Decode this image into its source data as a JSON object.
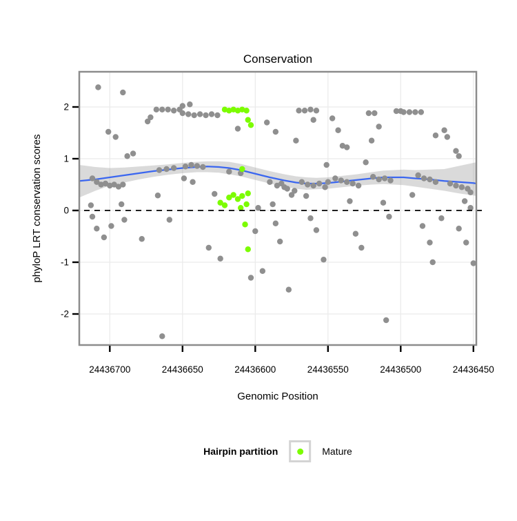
{
  "legend": {
    "title": "Hairpin partition",
    "items": [
      {
        "label": "Mature",
        "color_key": "mature"
      }
    ]
  },
  "chart_data": {
    "type": "scatter",
    "title": "Conservation",
    "xlabel": "Genomic Position",
    "ylabel": "phyloP LRT conservation scores",
    "xlim": [
      24436721,
      24436448
    ],
    "x_axis_reversed": true,
    "ylim": [
      -2.6,
      2.68
    ],
    "xticks": [
      24436700,
      24436650,
      24436600,
      24436550,
      24436500,
      24436450
    ],
    "yticks": [
      -2,
      -1,
      0,
      1,
      2
    ],
    "reference_line_y": 0,
    "grid": true,
    "legend_position": "bottom",
    "colors": {
      "other": "#8f8f8f",
      "mature": "#7CFC00",
      "smooth": "#3a66f0",
      "band": "#9e9e9e",
      "grid": "#ebebeb",
      "border": "#8c8c8c",
      "reference": "#000000"
    },
    "series": [
      {
        "name": "Other",
        "color_key": "other",
        "points": [
          [
            24436708,
            2.38
          ],
          [
            24436691,
            2.28
          ],
          [
            24436701,
            1.52
          ],
          [
            24436696,
            1.42
          ],
          [
            24436712,
            0.62
          ],
          [
            24436709,
            0.55
          ],
          [
            24436706,
            0.5
          ],
          [
            24436703,
            0.52
          ],
          [
            24436700,
            0.48
          ],
          [
            24436697,
            0.5
          ],
          [
            24436694,
            0.46
          ],
          [
            24436691,
            0.5
          ],
          [
            24436713,
            0.1
          ],
          [
            24436712,
            -0.12
          ],
          [
            24436709,
            -0.35
          ],
          [
            24436704,
            -0.52
          ],
          [
            24436699,
            -0.3
          ],
          [
            24436692,
            0.12
          ],
          [
            24436690,
            -0.18
          ],
          [
            24436688,
            1.05
          ],
          [
            24436684,
            1.1
          ],
          [
            24436678,
            -0.55
          ],
          [
            24436674,
            1.72
          ],
          [
            24436672,
            1.8
          ],
          [
            24436668,
            1.95
          ],
          [
            24436664,
            1.95
          ],
          [
            24436660,
            1.95
          ],
          [
            24436656,
            1.93
          ],
          [
            24436652,
            1.95
          ],
          [
            24436666,
            0.78
          ],
          [
            24436661,
            0.8
          ],
          [
            24436656,
            0.82
          ],
          [
            24436667,
            0.29
          ],
          [
            24436659,
            -0.18
          ],
          [
            24436664,
            -2.43
          ],
          [
            24436650,
            2.02
          ],
          [
            24436645,
            2.05
          ],
          [
            24436650,
            1.88
          ],
          [
            24436646,
            1.86
          ],
          [
            24436642,
            1.84
          ],
          [
            24436638,
            1.86
          ],
          [
            24436634,
            1.84
          ],
          [
            24436630,
            1.86
          ],
          [
            24436626,
            1.84
          ],
          [
            24436648,
            0.85
          ],
          [
            24436644,
            0.88
          ],
          [
            24436640,
            0.86
          ],
          [
            24436636,
            0.84
          ],
          [
            24436649,
            0.62
          ],
          [
            24436643,
            0.55
          ],
          [
            24436632,
            -0.72
          ],
          [
            24436628,
            0.32
          ],
          [
            24436624,
            -0.93
          ],
          [
            24436618,
            0.75
          ],
          [
            24436610,
            0.72
          ],
          [
            24436612,
            1.58
          ],
          [
            24436603,
            -1.3
          ],
          [
            24436600,
            -0.4
          ],
          [
            24436598,
            0.05
          ],
          [
            24436595,
            -1.17
          ],
          [
            24436592,
            1.7
          ],
          [
            24436586,
            1.52
          ],
          [
            24436590,
            0.55
          ],
          [
            24436585,
            0.48
          ],
          [
            24436582,
            0.52
          ],
          [
            24436580,
            0.45
          ],
          [
            24436578,
            0.42
          ],
          [
            24436588,
            0.12
          ],
          [
            24436586,
            -0.25
          ],
          [
            24436583,
            -0.6
          ],
          [
            24436577,
            -1.53
          ],
          [
            24436575,
            0.3
          ],
          [
            24436573,
            0.38
          ],
          [
            24436572,
            1.35
          ],
          [
            24436570,
            1.93
          ],
          [
            24436566,
            1.93
          ],
          [
            24436562,
            1.95
          ],
          [
            24436558,
            1.93
          ],
          [
            24436560,
            1.75
          ],
          [
            24436568,
            0.55
          ],
          [
            24436564,
            0.5
          ],
          [
            24436560,
            0.48
          ],
          [
            24436556,
            0.52
          ],
          [
            24436552,
            0.45
          ],
          [
            24436550,
            0.55
          ],
          [
            24436565,
            0.28
          ],
          [
            24436562,
            -0.15
          ],
          [
            24436558,
            -0.38
          ],
          [
            24436553,
            -0.95
          ],
          [
            24436551,
            0.88
          ],
          [
            24436547,
            1.78
          ],
          [
            24436543,
            1.55
          ],
          [
            24436540,
            1.25
          ],
          [
            24436537,
            1.22
          ],
          [
            24436545,
            0.62
          ],
          [
            24436541,
            0.58
          ],
          [
            24436537,
            0.55
          ],
          [
            24436533,
            0.52
          ],
          [
            24436529,
            0.48
          ],
          [
            24436535,
            0.18
          ],
          [
            24436531,
            -0.45
          ],
          [
            24436527,
            -0.72
          ],
          [
            24436522,
            1.88
          ],
          [
            24436518,
            1.88
          ],
          [
            24436520,
            1.35
          ],
          [
            24436515,
            1.62
          ],
          [
            24436524,
            0.93
          ],
          [
            24436519,
            0.65
          ],
          [
            24436515,
            0.6
          ],
          [
            24436511,
            0.62
          ],
          [
            24436507,
            0.58
          ],
          [
            24436512,
            0.15
          ],
          [
            24436508,
            -0.12
          ],
          [
            24436510,
            -2.12
          ],
          [
            24436503,
            1.92
          ],
          [
            24436500,
            1.92
          ],
          [
            24436498,
            1.9
          ],
          [
            24436494,
            1.9
          ],
          [
            24436490,
            1.9
          ],
          [
            24436486,
            1.9
          ],
          [
            24436488,
            0.68
          ],
          [
            24436484,
            0.62
          ],
          [
            24436480,
            0.6
          ],
          [
            24436476,
            0.55
          ],
          [
            24436492,
            0.3
          ],
          [
            24436485,
            -0.3
          ],
          [
            24436480,
            -0.62
          ],
          [
            24436478,
            -1.0
          ],
          [
            24436476,
            1.45
          ],
          [
            24436472,
            -0.15
          ],
          [
            24436470,
            1.55
          ],
          [
            24436468,
            1.42
          ],
          [
            24436462,
            1.15
          ],
          [
            24436460,
            1.05
          ],
          [
            24436466,
            0.52
          ],
          [
            24436462,
            0.48
          ],
          [
            24436458,
            0.45
          ],
          [
            24436454,
            0.42
          ],
          [
            24436452,
            0.35
          ],
          [
            24436456,
            0.18
          ],
          [
            24436452,
            0.05
          ],
          [
            24436460,
            -0.35
          ],
          [
            24436455,
            -0.62
          ],
          [
            24436450,
            -1.02
          ]
        ]
      },
      {
        "name": "Mature",
        "color_key": "mature",
        "points": [
          [
            24436621,
            1.95
          ],
          [
            24436618,
            1.93
          ],
          [
            24436615,
            1.95
          ],
          [
            24436612,
            1.93
          ],
          [
            24436609,
            1.95
          ],
          [
            24436606,
            1.93
          ],
          [
            24436605,
            1.75
          ],
          [
            24436603,
            1.65
          ],
          [
            24436609,
            0.8
          ],
          [
            24436624,
            0.15
          ],
          [
            24436621,
            0.1
          ],
          [
            24436618,
            0.25
          ],
          [
            24436615,
            0.3
          ],
          [
            24436612,
            0.22
          ],
          [
            24436609,
            0.28
          ],
          [
            24436606,
            0.12
          ],
          [
            24436605,
            0.33
          ],
          [
            24436610,
            0.05
          ],
          [
            24436607,
            -0.27
          ],
          [
            24436605,
            -0.75
          ]
        ]
      }
    ],
    "smooth": [
      [
        24436721,
        0.57,
        0.25,
        0.88
      ],
      [
        24436710,
        0.6,
        0.38,
        0.84
      ],
      [
        24436700,
        0.64,
        0.48,
        0.82
      ],
      [
        24436690,
        0.68,
        0.54,
        0.83
      ],
      [
        24436680,
        0.72,
        0.6,
        0.85
      ],
      [
        24436670,
        0.76,
        0.65,
        0.87
      ],
      [
        24436660,
        0.79,
        0.69,
        0.89
      ],
      [
        24436650,
        0.82,
        0.72,
        0.92
      ],
      [
        24436640,
        0.84,
        0.74,
        0.94
      ],
      [
        24436633,
        0.85,
        0.74,
        0.95
      ],
      [
        24436625,
        0.84,
        0.73,
        0.95
      ],
      [
        24436618,
        0.82,
        0.7,
        0.94
      ],
      [
        24436610,
        0.78,
        0.66,
        0.9
      ],
      [
        24436600,
        0.71,
        0.59,
        0.83
      ],
      [
        24436590,
        0.64,
        0.52,
        0.76
      ],
      [
        24436580,
        0.58,
        0.46,
        0.7
      ],
      [
        24436572,
        0.54,
        0.42,
        0.66
      ],
      [
        24436565,
        0.52,
        0.4,
        0.64
      ],
      [
        24436558,
        0.52,
        0.41,
        0.63
      ],
      [
        24436550,
        0.53,
        0.42,
        0.64
      ],
      [
        24436540,
        0.56,
        0.45,
        0.67
      ],
      [
        24436530,
        0.59,
        0.48,
        0.7
      ],
      [
        24436520,
        0.62,
        0.5,
        0.74
      ],
      [
        24436512,
        0.64,
        0.51,
        0.77
      ],
      [
        24436505,
        0.64,
        0.5,
        0.78
      ],
      [
        24436498,
        0.64,
        0.49,
        0.79
      ],
      [
        24436490,
        0.62,
        0.46,
        0.78
      ],
      [
        24436480,
        0.6,
        0.42,
        0.79
      ],
      [
        24436470,
        0.57,
        0.38,
        0.8
      ],
      [
        24436460,
        0.55,
        0.33,
        0.86
      ],
      [
        24436450,
        0.53,
        0.29,
        0.92
      ],
      [
        24436448,
        0.52,
        0.28,
        0.93
      ]
    ]
  }
}
